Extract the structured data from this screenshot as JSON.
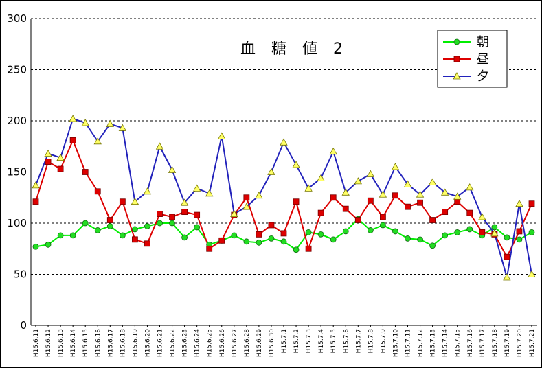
{
  "chart_data": {
    "type": "line",
    "title": "血 糖 値 2",
    "xlabel": "",
    "ylabel": "",
    "ylim": [
      0,
      300
    ],
    "yticks": [
      0,
      50,
      100,
      150,
      200,
      250,
      300
    ],
    "grid": "horizontal dashed",
    "legend_position": "top-right",
    "categories": [
      "H15.6.11",
      "H15.6.12",
      "H15.6.13",
      "H15.6.14",
      "H15.6.15",
      "H15.6.16",
      "H15.6.17",
      "H15.6.18",
      "H15.6.19",
      "H15.6.20",
      "H15.6.21",
      "H15.6.22",
      "H15.6.23",
      "H15.6.24",
      "H15.6.25",
      "H15.6.26",
      "H15.6.27",
      "H15.6.28",
      "H15.6.29",
      "H15.6.30",
      "H15.7.1",
      "H15.7.2",
      "H15.7.3",
      "H15.7.4",
      "H15.7.5",
      "H15.7.6",
      "H15.7.7",
      "H15.7.8",
      "H15.7.9",
      "H15.7.10",
      "H15.7.11",
      "H15.7.12",
      "H15.7.13",
      "H15.7.14",
      "H15.7.15",
      "H15.7.16",
      "H15.7.17",
      "H15.7.18",
      "H15.7.19",
      "H15.7.20",
      "H15.7.21"
    ],
    "series": [
      {
        "name": "朝",
        "color": "#00ee00",
        "marker_color": "#22dd22",
        "marker": "circle",
        "values": [
          77,
          79,
          88,
          88,
          100,
          93,
          97,
          88,
          94,
          97,
          100,
          100,
          86,
          96,
          79,
          83,
          88,
          82,
          81,
          85,
          82,
          74,
          91,
          89,
          84,
          92,
          104,
          93,
          98,
          92,
          85,
          84,
          78,
          88,
          91,
          94,
          88,
          96,
          86,
          84,
          91
        ]
      },
      {
        "name": "昼",
        "color": "#dd0000",
        "marker_color": "#dd0000",
        "marker": "square",
        "values": [
          121,
          160,
          153,
          181,
          150,
          131,
          103,
          121,
          84,
          80,
          109,
          106,
          111,
          108,
          75,
          83,
          108,
          125,
          89,
          98,
          90,
          121,
          75,
          110,
          125,
          114,
          103,
          122,
          106,
          127,
          116,
          120,
          103,
          111,
          121,
          110,
          91,
          89,
          67,
          92,
          119
        ]
      },
      {
        "name": "夕",
        "color": "#2222bb",
        "marker_color": "#ffff66",
        "marker": "triangle",
        "values": [
          137,
          168,
          164,
          202,
          198,
          180,
          197,
          193,
          121,
          131,
          175,
          152,
          120,
          134,
          129,
          185,
          109,
          116,
          127,
          150,
          179,
          157,
          134,
          144,
          170,
          130,
          141,
          148,
          128,
          155,
          138,
          128,
          140,
          130,
          126,
          135,
          106,
          90,
          47,
          119,
          50
        ]
      }
    ]
  }
}
